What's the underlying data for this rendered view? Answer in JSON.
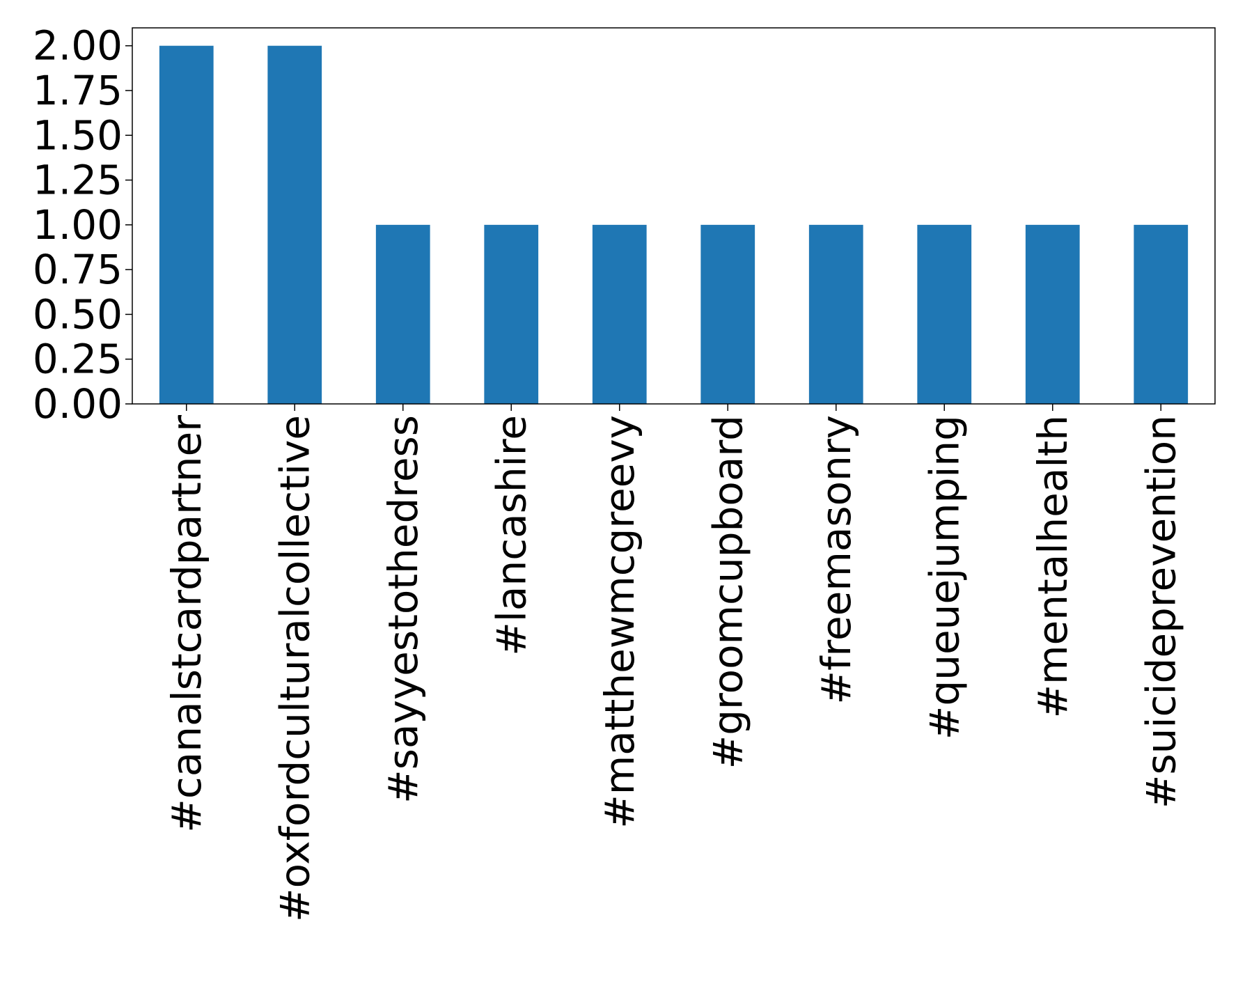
{
  "chart_data": {
    "type": "bar",
    "categories": [
      "#canalstcardpartner",
      "#oxfordculturalcollective",
      "#sayyestothedress",
      "#lancashire",
      "#matthewmcgreevy",
      "#groomcupboard",
      "#freemasonry",
      "#queuejumping",
      "#mentalhealth",
      "#suicideprevention"
    ],
    "values": [
      2,
      2,
      1,
      1,
      1,
      1,
      1,
      1,
      1,
      1
    ],
    "title": "",
    "xlabel": "",
    "ylabel": "",
    "ylim": [
      0,
      2.1
    ],
    "yticks": [
      "0.00",
      "0.25",
      "0.50",
      "0.75",
      "1.00",
      "1.25",
      "1.50",
      "1.75",
      "2.00"
    ],
    "grid": false,
    "bar_color": "#1f77b4"
  }
}
